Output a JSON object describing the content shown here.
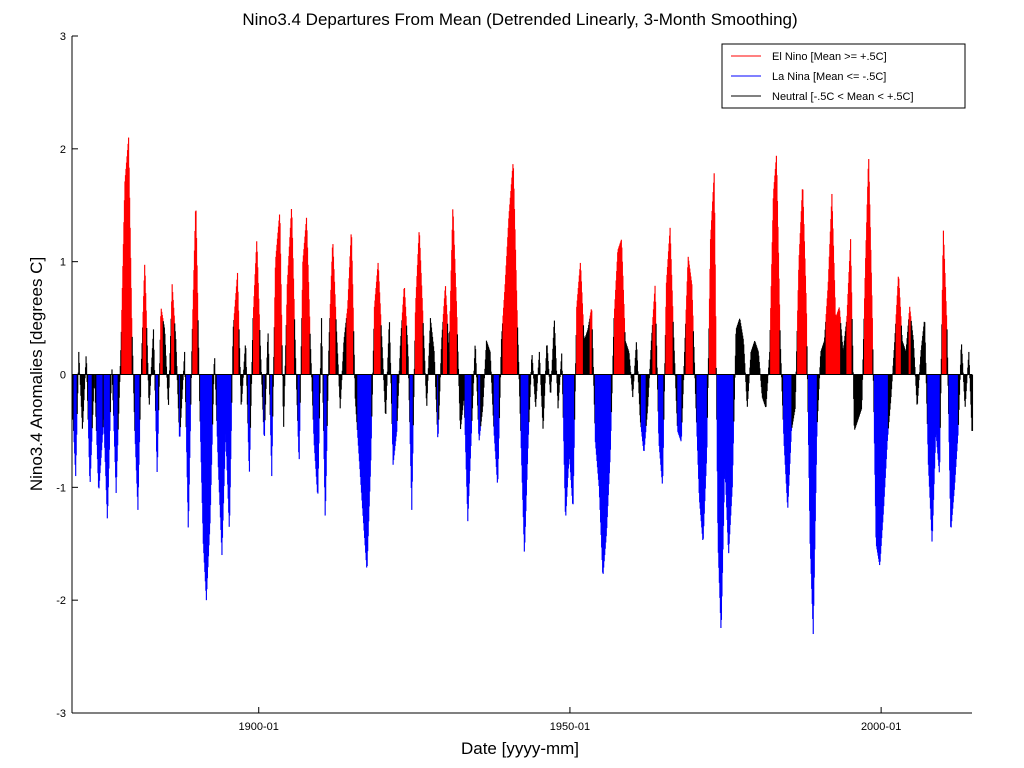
{
  "chart_data": {
    "type": "bar",
    "title": "Nino3.4 Departures From Mean (Detrended Linearly, 3-Month Smoothing)",
    "xlabel": "Date [yyyy-mm]",
    "ylabel": "Nino3.4 Anomalies [degrees C]",
    "xlim": [
      1870.0,
      2014.6
    ],
    "ylim": [
      -3,
      3
    ],
    "x_ticks": [
      {
        "label": "1900-01",
        "value": 1900.0
      },
      {
        "label": "1950-01",
        "value": 1950.0
      },
      {
        "label": "2000-01",
        "value": 2000.0
      }
    ],
    "y_ticks": [
      -3,
      -2,
      -1,
      0,
      1,
      2,
      3
    ],
    "grid": false,
    "legend_position": "top-right",
    "series": [
      {
        "name": "El Nino [Mean >= +.5C]",
        "color": "#ff0000"
      },
      {
        "name": "La Nina [Mean <= -.5C]",
        "color": "#0000ff"
      },
      {
        "name": "Neutral [-.5C < Mean < +.5C]",
        "color": "#000000"
      }
    ],
    "sampling": "monthly",
    "x_start": 1870.0,
    "anchors": [
      [
        1870.0,
        -0.3
      ],
      [
        1870.5,
        -0.9
      ],
      [
        1871.0,
        0.2
      ],
      [
        1871.6,
        -0.5
      ],
      [
        1872.2,
        0.2
      ],
      [
        1872.8,
        -1.0
      ],
      [
        1873.5,
        0.0
      ],
      [
        1874.2,
        -1.05
      ],
      [
        1875.0,
        -0.4
      ],
      [
        1875.6,
        -1.3
      ],
      [
        1876.3,
        0.1
      ],
      [
        1877.0,
        -1.05
      ],
      [
        1877.8,
        0.3
      ],
      [
        1878.4,
        1.7
      ],
      [
        1879.0,
        2.1
      ],
      [
        1879.5,
        0.5
      ],
      [
        1880.0,
        -0.5
      ],
      [
        1880.5,
        -1.2
      ],
      [
        1881.0,
        0.0
      ],
      [
        1881.6,
        1.0
      ],
      [
        1882.3,
        -0.3
      ],
      [
        1883.0,
        0.4
      ],
      [
        1883.6,
        -0.9
      ],
      [
        1884.2,
        0.6
      ],
      [
        1884.8,
        0.4
      ],
      [
        1885.4,
        -0.3
      ],
      [
        1886.0,
        0.8
      ],
      [
        1886.6,
        0.3
      ],
      [
        1887.2,
        -0.6
      ],
      [
        1888.0,
        0.2
      ],
      [
        1888.6,
        -1.4
      ],
      [
        1889.2,
        0.3
      ],
      [
        1889.8,
        1.55
      ],
      [
        1890.4,
        -0.2
      ],
      [
        1891.0,
        -1.5
      ],
      [
        1891.5,
        -2.0
      ],
      [
        1892.1,
        -1.3
      ],
      [
        1892.8,
        0.2
      ],
      [
        1893.4,
        -0.8
      ],
      [
        1894.0,
        -1.6
      ],
      [
        1894.6,
        -0.5
      ],
      [
        1895.2,
        -1.4
      ],
      [
        1895.8,
        0.4
      ],
      [
        1896.5,
        0.9
      ],
      [
        1897.1,
        -0.3
      ],
      [
        1897.8,
        0.3
      ],
      [
        1898.4,
        -0.9
      ],
      [
        1899.0,
        0.5
      ],
      [
        1899.6,
        1.2
      ],
      [
        1900.2,
        0.2
      ],
      [
        1900.8,
        -0.6
      ],
      [
        1901.4,
        0.4
      ],
      [
        1902.0,
        -0.9
      ],
      [
        1902.6,
        1.0
      ],
      [
        1903.3,
        1.45
      ],
      [
        1903.9,
        -0.5
      ],
      [
        1904.5,
        0.8
      ],
      [
        1905.2,
        1.5
      ],
      [
        1905.8,
        0.2
      ],
      [
        1906.4,
        -0.8
      ],
      [
        1907.0,
        1.0
      ],
      [
        1907.6,
        1.4
      ],
      [
        1908.2,
        0.3
      ],
      [
        1908.8,
        -0.6
      ],
      [
        1909.4,
        -1.1
      ],
      [
        1910.0,
        0.5
      ],
      [
        1910.6,
        -1.3
      ],
      [
        1911.2,
        0.3
      ],
      [
        1911.8,
        1.2
      ],
      [
        1912.4,
        0.4
      ],
      [
        1913.0,
        -0.3
      ],
      [
        1913.6,
        0.3
      ],
      [
        1914.2,
        0.6
      ],
      [
        1914.8,
        1.3
      ],
      [
        1915.4,
        -0.2
      ],
      [
        1916.0,
        -0.7
      ],
      [
        1916.6,
        -1.2
      ],
      [
        1917.3,
        -1.75
      ],
      [
        1917.9,
        -0.8
      ],
      [
        1918.5,
        0.6
      ],
      [
        1919.1,
        1.0
      ],
      [
        1919.7,
        0.3
      ],
      [
        1920.3,
        -0.4
      ],
      [
        1920.9,
        0.5
      ],
      [
        1921.5,
        -0.8
      ],
      [
        1922.1,
        -0.5
      ],
      [
        1922.7,
        0.3
      ],
      [
        1923.3,
        0.8
      ],
      [
        1923.9,
        0.2
      ],
      [
        1924.5,
        -1.2
      ],
      [
        1925.1,
        0.6
      ],
      [
        1925.7,
        1.3
      ],
      [
        1926.3,
        0.5
      ],
      [
        1926.9,
        -0.3
      ],
      [
        1927.5,
        0.5
      ],
      [
        1928.1,
        0.2
      ],
      [
        1928.7,
        -0.6
      ],
      [
        1929.3,
        0.3
      ],
      [
        1929.9,
        0.8
      ],
      [
        1930.5,
        0.2
      ],
      [
        1931.1,
        1.5
      ],
      [
        1931.7,
        0.6
      ],
      [
        1932.3,
        -0.5
      ],
      [
        1932.9,
        -0.2
      ],
      [
        1933.5,
        -1.3
      ],
      [
        1934.1,
        -0.5
      ],
      [
        1934.7,
        0.3
      ],
      [
        1935.3,
        -0.6
      ],
      [
        1935.9,
        -0.3
      ],
      [
        1936.5,
        0.3
      ],
      [
        1937.1,
        0.2
      ],
      [
        1937.7,
        -0.5
      ],
      [
        1938.3,
        -1.0
      ],
      [
        1938.9,
        0.3
      ],
      [
        1939.5,
        0.8
      ],
      [
        1940.1,
        1.4
      ],
      [
        1940.8,
        1.9
      ],
      [
        1941.4,
        0.6
      ],
      [
        1942.0,
        -0.5
      ],
      [
        1942.6,
        -1.6
      ],
      [
        1943.2,
        -0.6
      ],
      [
        1943.8,
        0.2
      ],
      [
        1944.4,
        -0.3
      ],
      [
        1945.0,
        0.2
      ],
      [
        1945.6,
        -0.5
      ],
      [
        1946.2,
        0.3
      ],
      [
        1946.8,
        -0.2
      ],
      [
        1947.4,
        0.5
      ],
      [
        1948.0,
        -0.3
      ],
      [
        1948.6,
        0.2
      ],
      [
        1949.2,
        -1.3
      ],
      [
        1949.8,
        -0.7
      ],
      [
        1950.4,
        -1.2
      ],
      [
        1951.0,
        0.6
      ],
      [
        1951.6,
        1.0
      ],
      [
        1952.2,
        0.3
      ],
      [
        1952.8,
        0.4
      ],
      [
        1953.4,
        0.6
      ],
      [
        1954.0,
        -0.6
      ],
      [
        1954.6,
        -1.0
      ],
      [
        1955.2,
        -1.8
      ],
      [
        1955.8,
        -1.4
      ],
      [
        1956.4,
        -0.7
      ],
      [
        1957.0,
        0.5
      ],
      [
        1957.6,
        1.1
      ],
      [
        1958.2,
        1.2
      ],
      [
        1958.8,
        0.3
      ],
      [
        1959.4,
        0.2
      ],
      [
        1960.0,
        -0.2
      ],
      [
        1960.6,
        0.3
      ],
      [
        1961.2,
        -0.4
      ],
      [
        1961.8,
        -0.7
      ],
      [
        1962.4,
        -0.3
      ],
      [
        1963.0,
        0.3
      ],
      [
        1963.6,
        0.8
      ],
      [
        1964.2,
        -0.6
      ],
      [
        1964.8,
        -1.0
      ],
      [
        1965.4,
        0.8
      ],
      [
        1966.0,
        1.3
      ],
      [
        1966.6,
        0.3
      ],
      [
        1967.2,
        -0.5
      ],
      [
        1967.8,
        -0.6
      ],
      [
        1968.4,
        0.3
      ],
      [
        1968.9,
        1.05
      ],
      [
        1969.5,
        0.8
      ],
      [
        1970.1,
        -0.2
      ],
      [
        1970.7,
        -1.1
      ],
      [
        1971.3,
        -1.5
      ],
      [
        1971.9,
        -0.7
      ],
      [
        1972.5,
        1.2
      ],
      [
        1973.1,
        1.8
      ],
      [
        1973.7,
        -1.5
      ],
      [
        1974.2,
        -2.3
      ],
      [
        1974.8,
        -0.8
      ],
      [
        1975.4,
        -1.6
      ],
      [
        1976.0,
        -1.0
      ],
      [
        1976.6,
        0.4
      ],
      [
        1977.2,
        0.5
      ],
      [
        1977.8,
        0.3
      ],
      [
        1978.4,
        -0.3
      ],
      [
        1979.0,
        0.2
      ],
      [
        1979.6,
        0.3
      ],
      [
        1980.2,
        0.2
      ],
      [
        1980.8,
        -0.2
      ],
      [
        1981.4,
        -0.3
      ],
      [
        1982.0,
        0.2
      ],
      [
        1982.6,
        1.6
      ],
      [
        1983.1,
        1.95
      ],
      [
        1983.7,
        0.3
      ],
      [
        1984.3,
        -0.6
      ],
      [
        1984.9,
        -1.2
      ],
      [
        1985.5,
        -0.5
      ],
      [
        1986.1,
        -0.3
      ],
      [
        1986.7,
        1.0
      ],
      [
        1987.3,
        1.7
      ],
      [
        1987.9,
        0.6
      ],
      [
        1988.5,
        -1.5
      ],
      [
        1989.0,
        -2.3
      ],
      [
        1989.6,
        -0.5
      ],
      [
        1990.2,
        0.2
      ],
      [
        1990.8,
        0.3
      ],
      [
        1991.4,
        0.8
      ],
      [
        1992.0,
        1.6
      ],
      [
        1992.6,
        0.5
      ],
      [
        1993.2,
        0.6
      ],
      [
        1993.8,
        0.2
      ],
      [
        1994.4,
        0.5
      ],
      [
        1995.0,
        1.2
      ],
      [
        1995.6,
        -0.5
      ],
      [
        1996.2,
        -0.4
      ],
      [
        1996.8,
        -0.3
      ],
      [
        1997.4,
        1.0
      ],
      [
        1997.9,
        1.95
      ],
      [
        1998.5,
        0.5
      ],
      [
        1999.1,
        -1.5
      ],
      [
        1999.7,
        -1.7
      ],
      [
        2000.3,
        -1.2
      ],
      [
        2000.9,
        -0.6
      ],
      [
        2001.5,
        -0.2
      ],
      [
        2002.1,
        0.3
      ],
      [
        2002.7,
        0.9
      ],
      [
        2003.3,
        0.3
      ],
      [
        2003.9,
        0.2
      ],
      [
        2004.5,
        0.6
      ],
      [
        2005.1,
        0.3
      ],
      [
        2005.7,
        -0.3
      ],
      [
        2006.3,
        0.2
      ],
      [
        2006.9,
        0.5
      ],
      [
        2007.5,
        -0.8
      ],
      [
        2008.1,
        -1.5
      ],
      [
        2008.7,
        -0.5
      ],
      [
        2009.3,
        -0.9
      ],
      [
        2009.9,
        1.3
      ],
      [
        2010.5,
        0.4
      ],
      [
        2011.1,
        -1.4
      ],
      [
        2011.7,
        -1.0
      ],
      [
        2012.3,
        -0.5
      ],
      [
        2012.8,
        0.3
      ],
      [
        2013.4,
        -0.3
      ],
      [
        2014.0,
        0.2
      ],
      [
        2014.5,
        -0.5
      ]
    ]
  }
}
